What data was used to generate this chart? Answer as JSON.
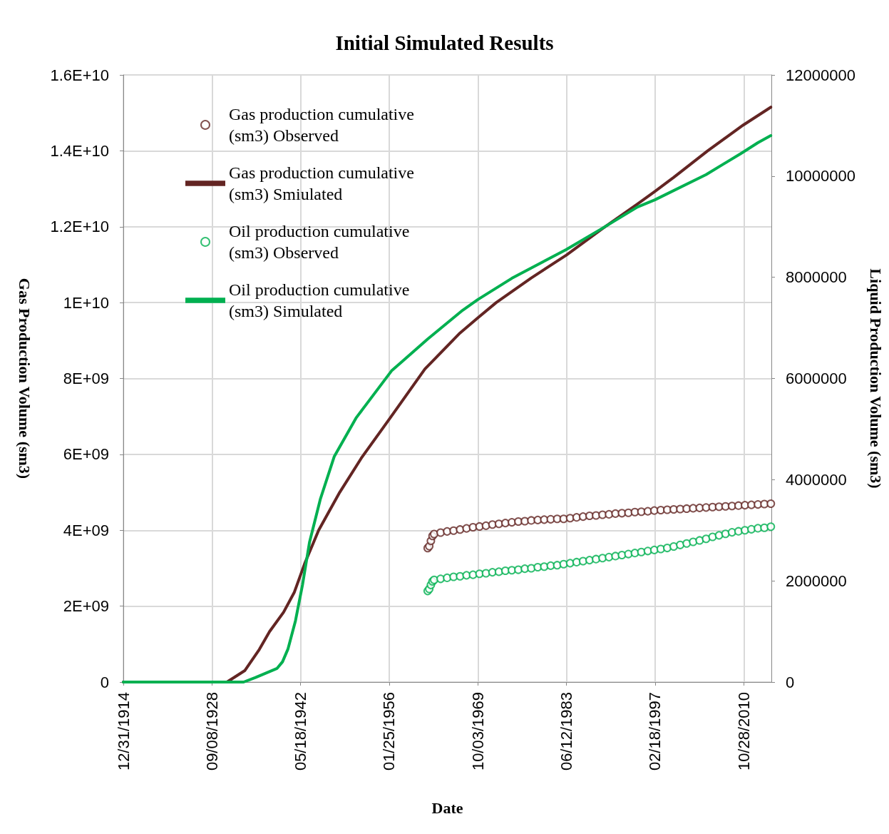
{
  "chart_data": {
    "type": "line",
    "title": "Initial Simulated Results",
    "xlabel": "Date",
    "ylabel": "Gas Production Volume (sm3)",
    "y2label": "Liquid Production Volume (sm3)",
    "xlim": [
      "1914-12-31",
      "2015-01-31"
    ],
    "xticks": [
      {
        "value": "1914-12-31",
        "label": "12/31/1914"
      },
      {
        "value": "1928-09-08",
        "label": "09/08/1928"
      },
      {
        "value": "1942-05-18",
        "label": "05/18/1942"
      },
      {
        "value": "1956-01-25",
        "label": "01/25/1956"
      },
      {
        "value": "1969-10-03",
        "label": "10/03/1969"
      },
      {
        "value": "1983-06-12",
        "label": "06/12/1983"
      },
      {
        "value": "1997-02-18",
        "label": "02/18/1997"
      },
      {
        "value": "2010-10-28",
        "label": "10/28/2010"
      }
    ],
    "ylim": [
      0,
      16000000000
    ],
    "yticks": [
      0,
      {
        "value": 2000000000,
        "label": "2E+09"
      },
      {
        "value": 4000000000,
        "label": "4E+09"
      },
      {
        "value": 6000000000,
        "label": "6E+09"
      },
      {
        "value": 8000000000,
        "label": "8E+09"
      },
      {
        "value": 10000000000,
        "label": "1E+10"
      },
      {
        "value": 12000000000,
        "label": "1.2E+10"
      },
      {
        "value": 14000000000,
        "label": "1.4E+10"
      },
      {
        "value": 16000000000,
        "label": "1.6E+10"
      }
    ],
    "y2lim": [
      0,
      12000000
    ],
    "y2ticks": [
      0,
      2000000,
      4000000,
      6000000,
      8000000,
      10000000,
      12000000
    ],
    "grid": true,
    "legend": "top left",
    "series": [
      {
        "name": "Gas production cumulative (sm3) Observed",
        "type": "scatter",
        "marker": "circle",
        "color": "#632523",
        "x": [
          "1962-01",
          "1962-04",
          "1962-07",
          "1962-10",
          "1963",
          "1964",
          "1965",
          "1966",
          "1967",
          "1968",
          "1969",
          "1970",
          "1971",
          "1972",
          "1973",
          "1974",
          "1975",
          "1976",
          "1977",
          "1978",
          "1979",
          "1980",
          "1981",
          "1982",
          "1983",
          "1984",
          "1985",
          "1986",
          "1987",
          "1988",
          "1989",
          "1990",
          "1991",
          "1992",
          "1993",
          "1994",
          "1995",
          "1996",
          "1997",
          "1998",
          "1999",
          "2000",
          "2001",
          "2002",
          "2003",
          "2004",
          "2005",
          "2006",
          "2007",
          "2008",
          "2009",
          "2010",
          "2011",
          "2012",
          "2013",
          "2014",
          "2015-01"
        ],
        "values": [
          3530000000.0,
          3580000000.0,
          3720000000.0,
          3850000000.0,
          3900000000.0,
          3940000000.0,
          3970000000.0,
          3990000000.0,
          4020000000.0,
          4050000000.0,
          4080000000.0,
          4100000000.0,
          4120000000.0,
          4150000000.0,
          4170000000.0,
          4190000000.0,
          4210000000.0,
          4230000000.0,
          4240000000.0,
          4260000000.0,
          4270000000.0,
          4280000000.0,
          4290000000.0,
          4300000000.0,
          4300000000.0,
          4320000000.0,
          4340000000.0,
          4360000000.0,
          4380000000.0,
          4390000000.0,
          4410000000.0,
          4420000000.0,
          4440000000.0,
          4450000000.0,
          4460000000.0,
          4480000000.0,
          4490000000.0,
          4500000000.0,
          4520000000.0,
          4530000000.0,
          4540000000.0,
          4550000000.0,
          4560000000.0,
          4570000000.0,
          4580000000.0,
          4590000000.0,
          4600000000.0,
          4610000000.0,
          4620000000.0,
          4630000000.0,
          4640000000.0,
          4650000000.0,
          4660000000.0,
          4670000000.0,
          4680000000.0,
          4690000000.0,
          4700000000.0
        ]
      },
      {
        "name": "Gas production cumulative (sm3) Smiulated",
        "color": "#632523",
        "x": [
          "1914-12-31",
          "1931",
          "1933-10",
          "1936",
          "1937-08",
          "1939-10",
          "1941-06",
          "1943-01",
          "1945-03",
          "1948-06",
          "1951-10",
          "1956-03",
          "1961-08",
          "1967-01",
          "1969-10",
          "1972-08",
          "1978",
          "1983-06",
          "1989",
          "1994-06",
          "1997-02",
          "2000",
          "2005-04",
          "2010-10",
          "2015-01"
        ],
        "values": [
          0,
          0,
          300000000.0,
          860000000.0,
          1330000000.0,
          1840000000.0,
          2370000000.0,
          3120000000.0,
          4000000000.0,
          5000000000.0,
          5900000000.0,
          6950000000.0,
          8250000000.0,
          9200000000.0,
          9600000000.0,
          10000000000.0,
          10650000000.0,
          11250000000.0,
          11950000000.0,
          12600000000.0,
          12930000000.0,
          13300000000.0,
          14000000000.0,
          14680000000.0,
          15150000000.0
        ]
      },
      {
        "name": "Oil production cumulative (sm3) Observed",
        "type": "scatter",
        "marker": "circle",
        "axis": "y2",
        "color": "#00b050",
        "x": [
          "1962-01",
          "1962-04",
          "1962-07",
          "1962-10",
          "1963",
          "1964",
          "1965",
          "1966",
          "1967",
          "1968",
          "1969",
          "1970",
          "1971",
          "1972",
          "1973",
          "1974",
          "1975",
          "1976",
          "1977",
          "1978",
          "1979",
          "1980",
          "1981",
          "1982",
          "1983",
          "1984",
          "1985",
          "1986",
          "1987",
          "1988",
          "1989",
          "1990",
          "1991",
          "1992",
          "1993",
          "1994",
          "1995",
          "1996",
          "1997",
          "1998",
          "1999",
          "2000",
          "2001",
          "2002",
          "2003",
          "2004",
          "2005",
          "2006",
          "2007",
          "2008",
          "2009",
          "2010",
          "2011",
          "2012",
          "2013",
          "2014",
          "2015-01"
        ],
        "values": [
          1800000.0,
          1840000.0,
          1920000.0,
          1990000.0,
          2020000.0,
          2040000.0,
          2060000.0,
          2080000.0,
          2090000.0,
          2110000.0,
          2120000.0,
          2140000.0,
          2150000.0,
          2170000.0,
          2180000.0,
          2200000.0,
          2210000.0,
          2220000.0,
          2240000.0,
          2250000.0,
          2270000.0,
          2280000.0,
          2300000.0,
          2310000.0,
          2330000.0,
          2350000.0,
          2370000.0,
          2390000.0,
          2410000.0,
          2430000.0,
          2450000.0,
          2470000.0,
          2490000.0,
          2510000.0,
          2530000.0,
          2550000.0,
          2570000.0,
          2590000.0,
          2610000.0,
          2630000.0,
          2650000.0,
          2680000.0,
          2710000.0,
          2740000.0,
          2770000.0,
          2800000.0,
          2830000.0,
          2870000.0,
          2900000.0,
          2930000.0,
          2960000.0,
          2980000.0,
          3000000.0,
          3020000.0,
          3040000.0,
          3050000.0,
          3070000.0
        ]
      },
      {
        "name": "Oil production cumulative (sm3) Simulated",
        "axis": "y2",
        "color": "#00b050",
        "x": [
          "1914-12-31",
          "1933-08",
          "1935-06",
          "1938-10",
          "1939-08",
          "1940-06",
          "1941-08",
          "1942-09",
          "1943-10",
          "1945-06",
          "1947-08",
          "1951",
          "1956-06",
          "1962",
          "1967-06",
          "1969-10",
          "1975",
          "1983-06",
          "1989",
          "1994-06",
          "1997-02",
          "2005",
          "2010-06",
          "2013",
          "2015-01"
        ],
        "values": [
          0,
          0,
          90000.0,
          270000.0,
          400000.0,
          650000.0,
          1210000.0,
          1920000.0,
          2760000.0,
          3610000.0,
          4460000.0,
          5230000.0,
          6150000.0,
          6780000.0,
          7350000.0,
          7560000.0,
          7980000.0,
          8550000.0,
          8970000.0,
          9390000.0,
          9530000.0,
          10030000.0,
          10450000.0,
          10660000.0,
          10800000.0
        ]
      }
    ]
  }
}
